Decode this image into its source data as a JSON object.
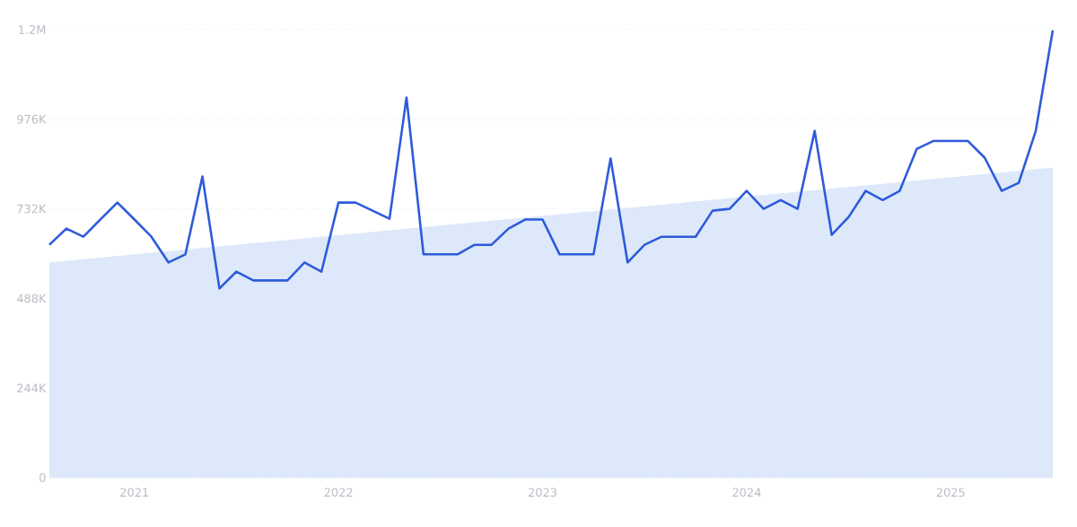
{
  "chart_data": {
    "type": "line",
    "x": [
      "2020-08",
      "2020-09",
      "2020-10",
      "2020-11",
      "2020-12",
      "2021-01",
      "2021-02",
      "2021-03",
      "2021-04",
      "2021-05",
      "2021-06",
      "2021-07",
      "2021-08",
      "2021-09",
      "2021-10",
      "2021-11",
      "2021-12",
      "2022-01",
      "2022-02",
      "2022-03",
      "2022-04",
      "2022-05",
      "2022-06",
      "2022-07",
      "2022-08",
      "2022-09",
      "2022-10",
      "2022-11",
      "2022-12",
      "2023-01",
      "2023-02",
      "2023-03",
      "2023-04",
      "2023-05",
      "2023-06",
      "2023-07",
      "2023-08",
      "2023-09",
      "2023-10",
      "2023-11",
      "2023-12",
      "2024-01",
      "2024-02",
      "2024-03",
      "2024-04",
      "2024-05",
      "2024-06",
      "2024-07",
      "2024-08",
      "2024-09",
      "2024-10",
      "2024-11",
      "2024-12",
      "2025-01",
      "2025-02",
      "2025-03",
      "2025-04",
      "2025-05",
      "2025-06",
      "2025-07"
    ],
    "series": [
      {
        "type": "area",
        "x": [
          "2020-08",
          "2025-07"
        ],
        "values": [
          586000,
          844000
        ],
        "color": "#dde9fa"
      },
      {
        "color": "#2e5bdb",
        "values": [
          634000,
          678000,
          656000,
          703000,
          749000,
          703000,
          656000,
          586000,
          608000,
          820000,
          515000,
          561000,
          537000,
          537000,
          537000,
          586000,
          561000,
          749000,
          749000,
          727000,
          705000,
          1035000,
          608000,
          608000,
          608000,
          634000,
          634000,
          678000,
          703000,
          703000,
          608000,
          608000,
          608000,
          869000,
          586000,
          634000,
          656000,
          656000,
          656000,
          727000,
          732000,
          781000,
          732000,
          756000,
          732000,
          944000,
          661000,
          710000,
          781000,
          756000,
          781000,
          895000,
          917000,
          917000,
          917000,
          871000,
          781000,
          803000,
          944000,
          1218000
        ]
      }
    ],
    "xlim": [
      "2020-08",
      "2025-07"
    ],
    "xticks": [
      {
        "value": "2021-01",
        "label": "2021"
      },
      {
        "value": "2022-01",
        "label": "2022"
      },
      {
        "value": "2023-01",
        "label": "2023"
      },
      {
        "value": "2024-01",
        "label": "2024"
      },
      {
        "value": "2025-01",
        "label": "2025"
      }
    ],
    "ylim": [
      0,
      1220000
    ],
    "yticks": [
      0,
      {
        "value": 244000,
        "label": "244K"
      },
      {
        "value": 488000,
        "label": "488K"
      },
      {
        "value": 732000,
        "label": "732K"
      },
      {
        "value": 976000,
        "label": "976K"
      },
      {
        "value": 1220000,
        "label": "1.2M"
      }
    ],
    "grid": "y",
    "line_style": "solid"
  }
}
